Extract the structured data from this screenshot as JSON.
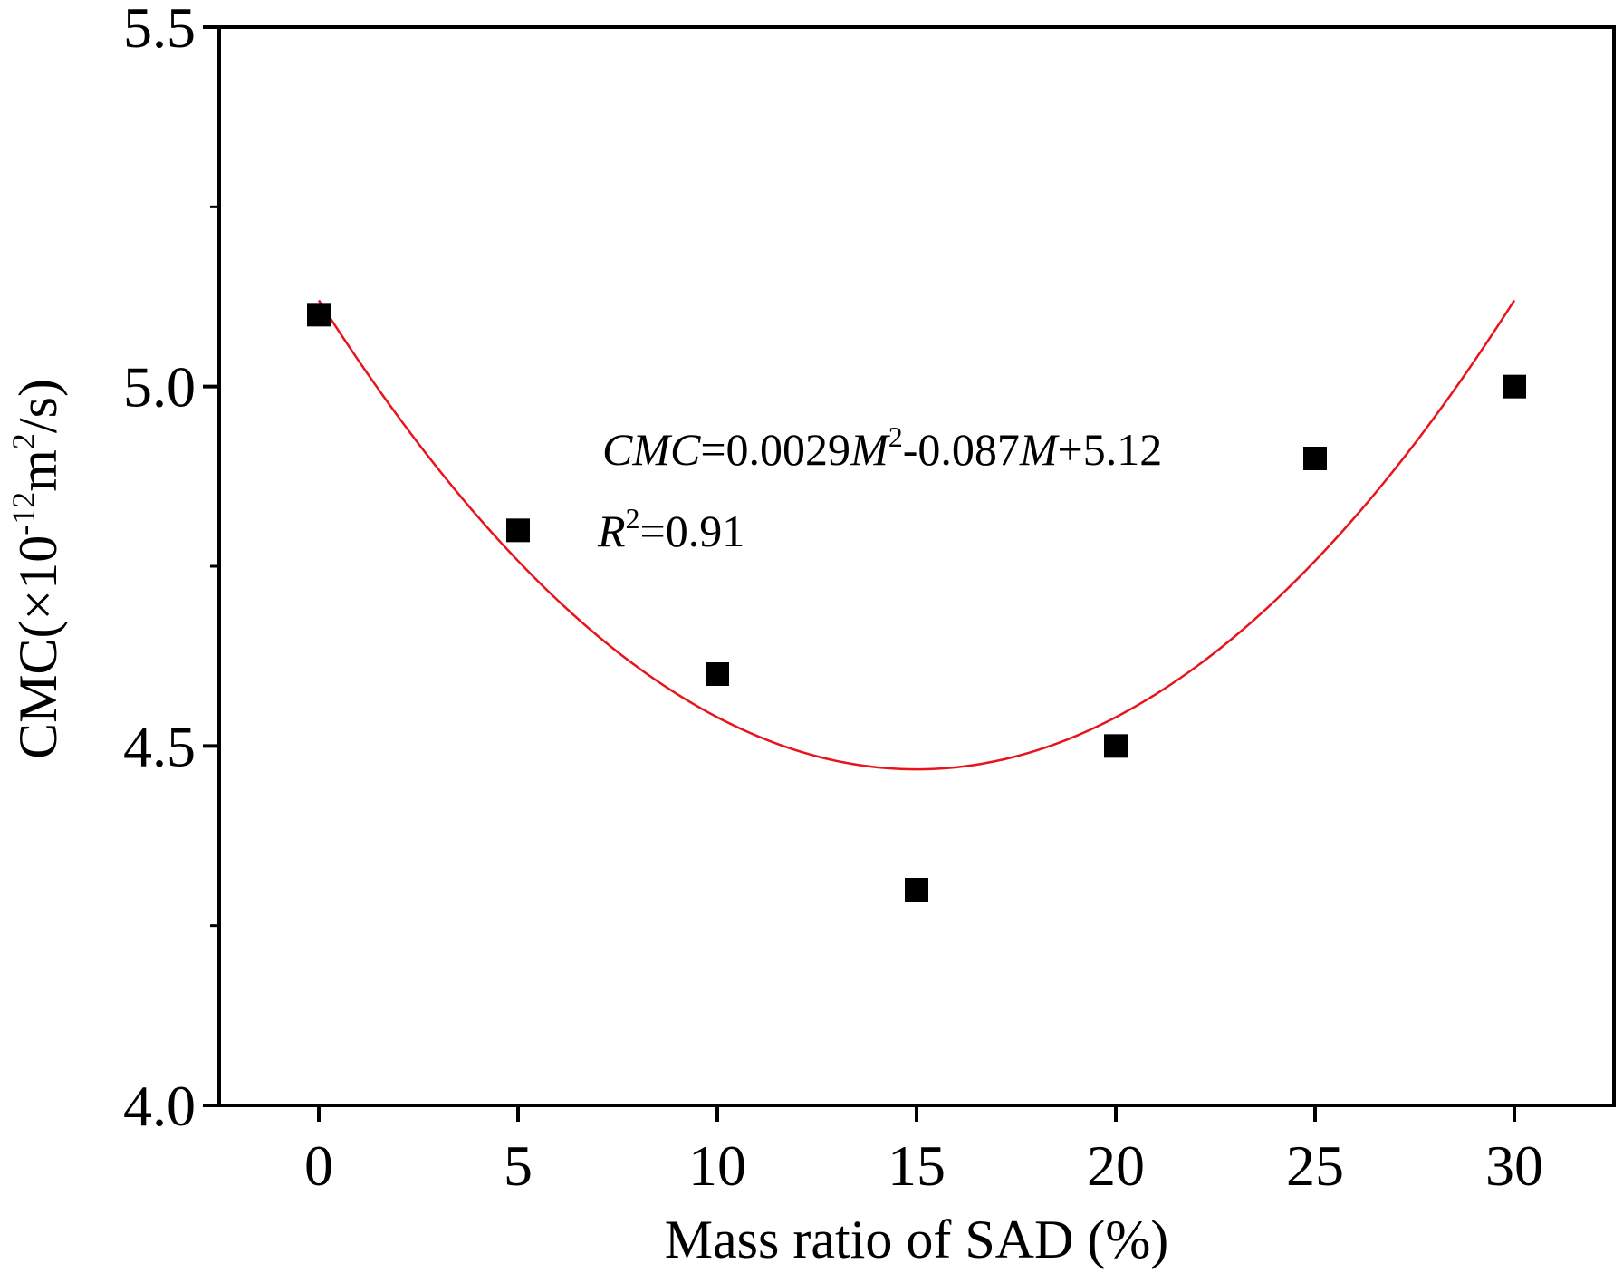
{
  "chart_data": {
    "type": "scatter",
    "title": "",
    "xlabel": "Mass ratio of SAD (%)",
    "ylabel": {
      "prefix": "CMC(×10",
      "exponent": "-12",
      "unit": "m",
      "unit_exponent": "2",
      "suffix": "/s)"
    },
    "xlim": [
      -2.5,
      32.5
    ],
    "ylim": [
      4.0,
      5.5
    ],
    "x_ticks": [
      0,
      5,
      10,
      15,
      20,
      25,
      30
    ],
    "x_tick_labels": [
      "0",
      "5",
      "10",
      "15",
      "20",
      "25",
      "30"
    ],
    "y_ticks": [
      4.0,
      4.5,
      5.0,
      5.5
    ],
    "y_tick_labels": [
      "4.0",
      "4.5",
      "5.0",
      "5.5"
    ],
    "y_minor_ticks": [
      4.25,
      4.75,
      5.25
    ],
    "grid": false,
    "series": [
      {
        "name": "CMC",
        "marker": "square",
        "color": "#000000",
        "x": [
          0,
          5,
          10,
          15,
          20,
          25,
          30
        ],
        "y": [
          5.1,
          4.8,
          4.6,
          4.3,
          4.5,
          4.9,
          5.0
        ]
      }
    ],
    "fit": {
      "type": "quadratic",
      "coefficients": {
        "a": 0.0029,
        "b": -0.087,
        "c": 5.12
      },
      "x_range": [
        0,
        30
      ],
      "color": "#e8141c"
    },
    "annotations": {
      "equation": {
        "lhs": "CMC",
        "coef_a": "=0.0029",
        "var1": "M",
        "exp": "2",
        "coef_b": "-0.087",
        "var2": "M",
        "const": "+5.12"
      },
      "r_squared": {
        "symbol": "R",
        "exp": "2",
        "value": "=0.91"
      }
    }
  }
}
